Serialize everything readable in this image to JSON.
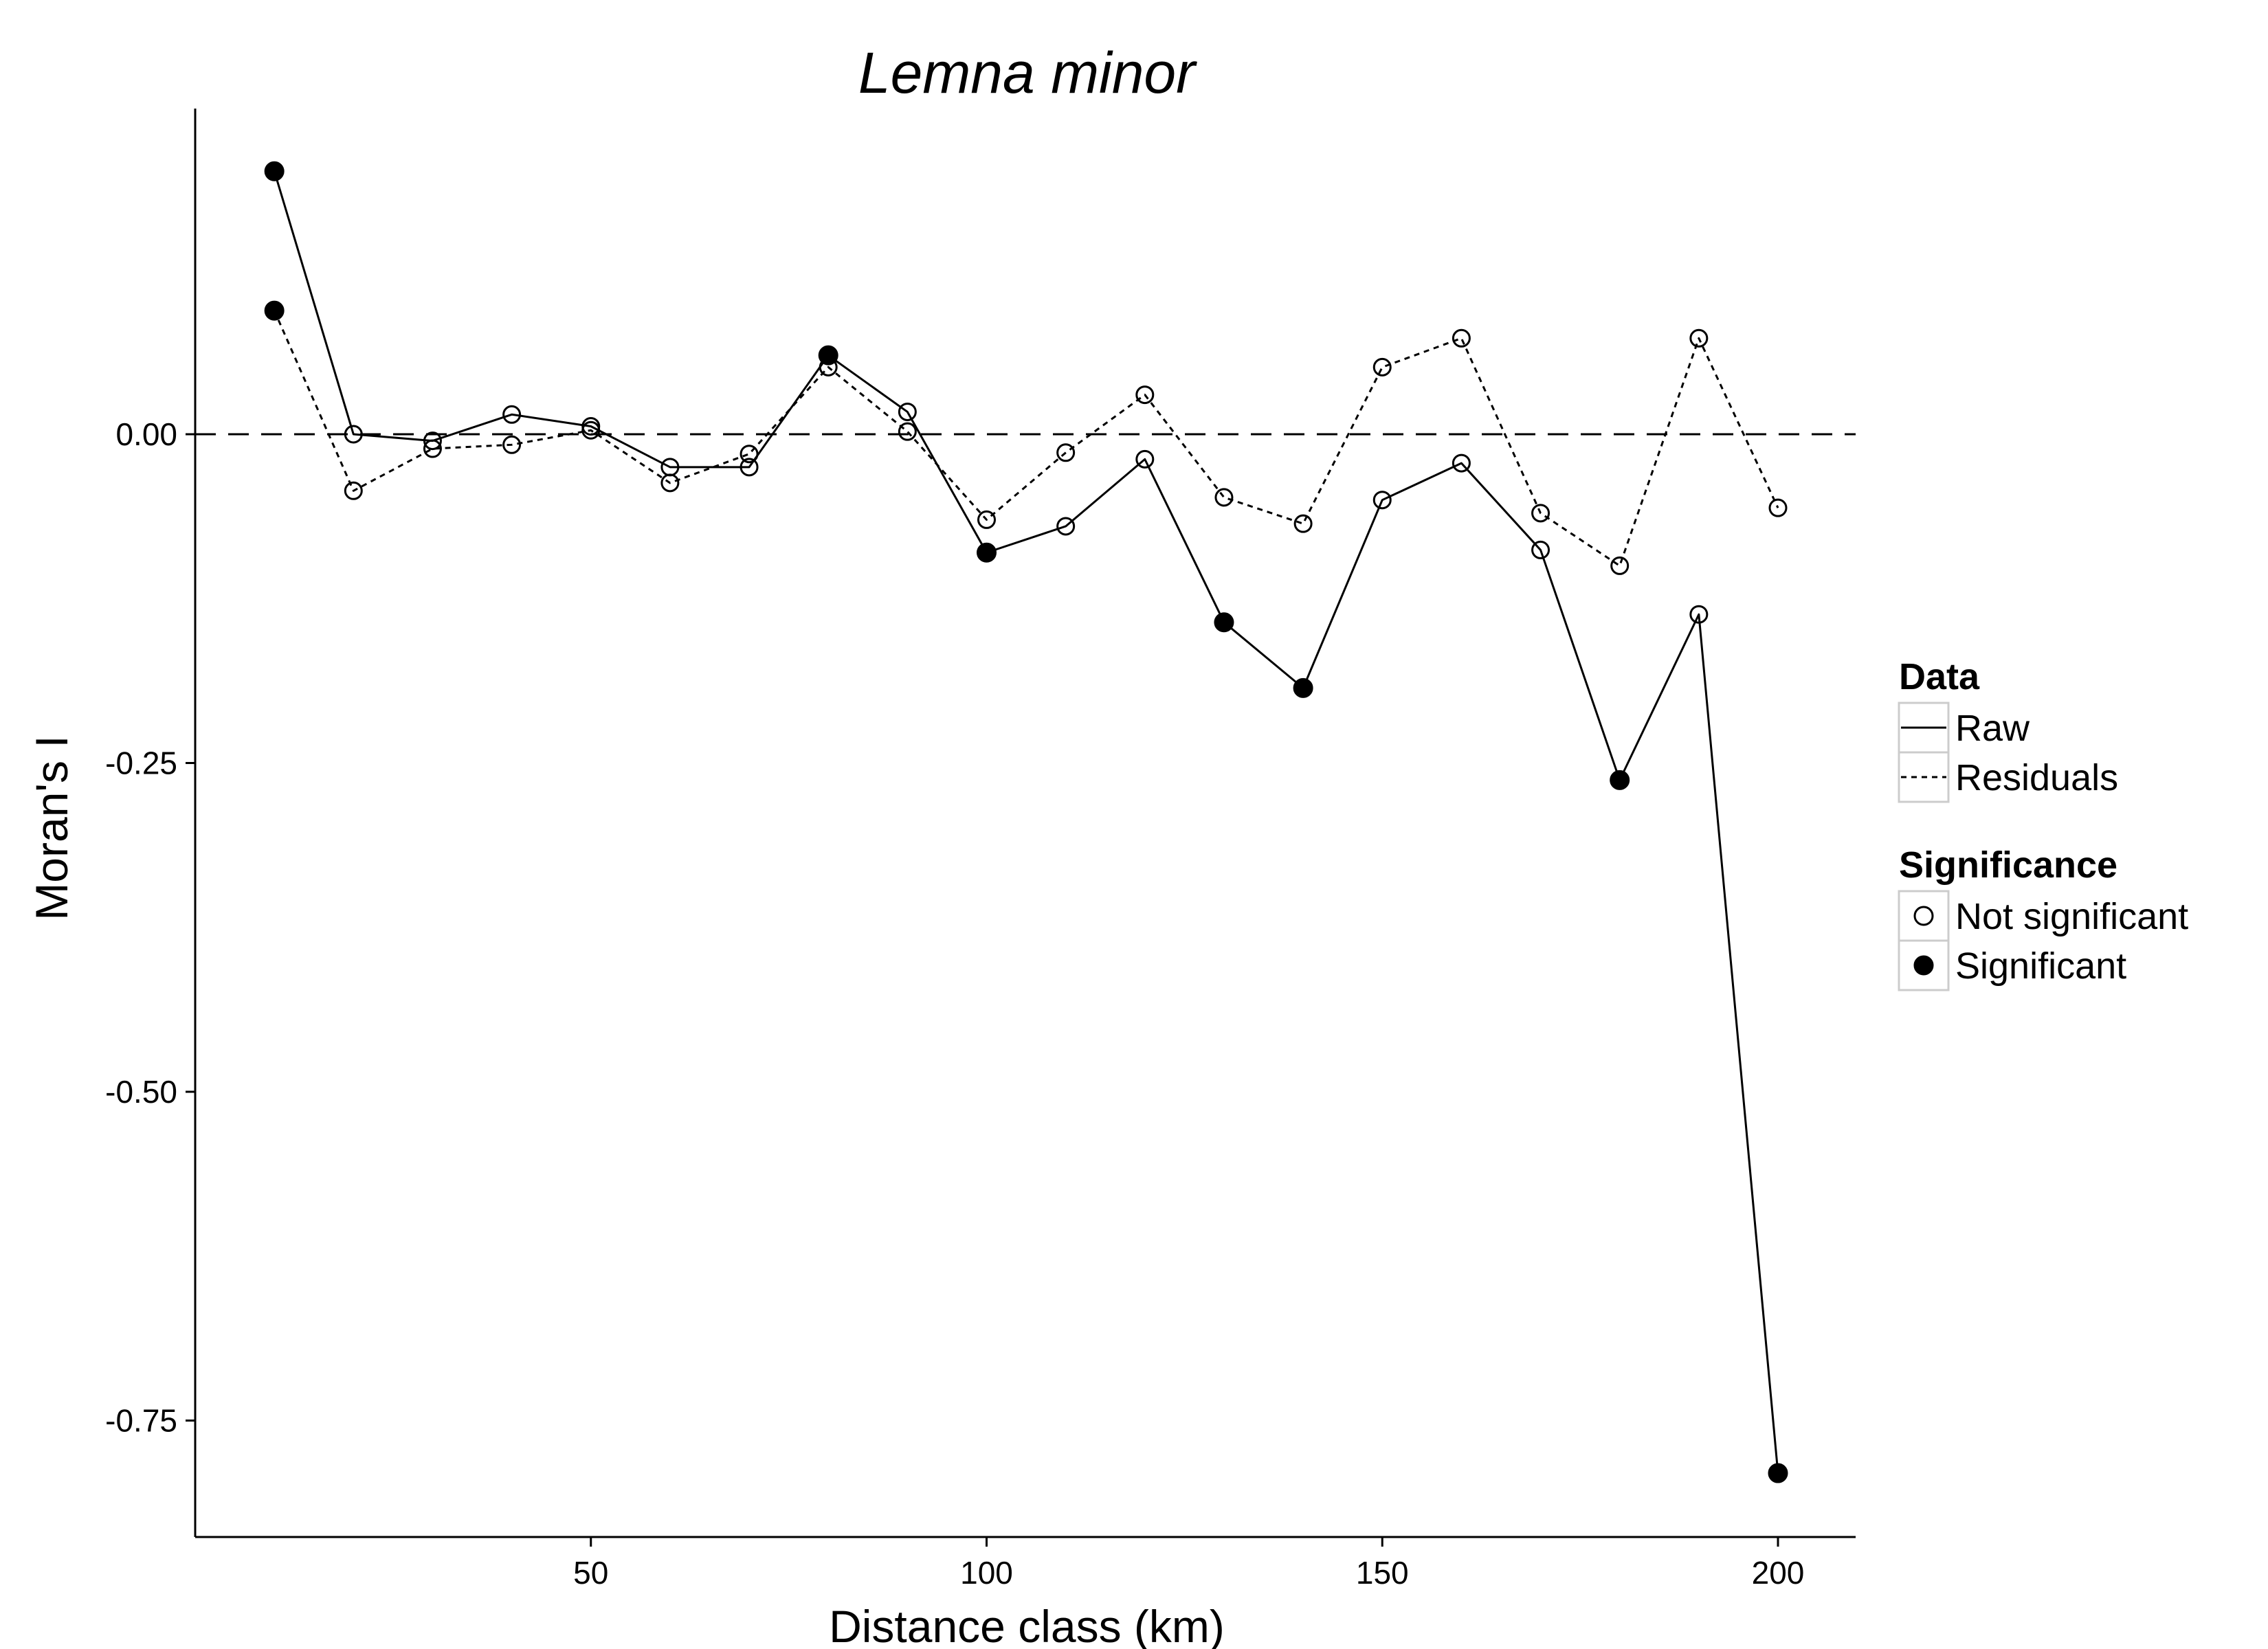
{
  "chart_data": {
    "type": "line",
    "title": "Lemna minor",
    "xlabel": "Distance class (km)",
    "ylabel": "Moran's I",
    "xlim": [
      0,
      210
    ],
    "ylim": [
      -0.83,
      0.25
    ],
    "x_ticks": [
      50,
      100,
      150,
      200
    ],
    "y_ticks": [
      0.0,
      -0.25,
      -0.5,
      -0.75
    ],
    "x_tick_labels": [
      "50",
      "100",
      "150",
      "200"
    ],
    "y_tick_labels": [
      "0.00",
      "-0.25",
      "-0.50",
      "-0.75"
    ],
    "reference_line": {
      "y": 0,
      "style": "dashed"
    },
    "grid": false,
    "legend_position": "right",
    "x": [
      10,
      20,
      30,
      40,
      50,
      60,
      70,
      80,
      90,
      100,
      110,
      120,
      130,
      140,
      150,
      160,
      170,
      180,
      190,
      200
    ],
    "series": [
      {
        "name": "Raw",
        "line_style": "solid",
        "values": [
          0.2,
          0.0,
          -0.005,
          0.015,
          0.006,
          -0.025,
          -0.025,
          0.06,
          0.017,
          -0.09,
          -0.07,
          -0.019,
          -0.143,
          -0.193,
          -0.05,
          -0.022,
          -0.088,
          -0.263,
          -0.137,
          -0.79
        ],
        "significant": [
          true,
          false,
          false,
          false,
          false,
          false,
          false,
          true,
          false,
          true,
          false,
          false,
          true,
          true,
          false,
          false,
          false,
          true,
          false,
          true
        ]
      },
      {
        "name": "Residuals",
        "line_style": "dotted",
        "values": [
          0.094,
          -0.043,
          -0.011,
          -0.008,
          0.003,
          -0.037,
          -0.015,
          0.051,
          0.002,
          -0.065,
          -0.014,
          0.03,
          -0.048,
          -0.068,
          0.051,
          0.073,
          -0.06,
          -0.1,
          0.073,
          -0.056
        ],
        "significant": [
          true,
          false,
          false,
          false,
          false,
          false,
          false,
          false,
          false,
          false,
          false,
          false,
          false,
          false,
          false,
          false,
          false,
          false,
          false,
          false
        ]
      }
    ],
    "legend": {
      "data_title": "Data",
      "data_items": [
        {
          "label": "Raw",
          "line_style": "solid"
        },
        {
          "label": "Residuals",
          "line_style": "dotted"
        }
      ],
      "significance_title": "Significance",
      "significance_items": [
        {
          "label": "Not significant",
          "marker": "open-circle"
        },
        {
          "label": "Significant",
          "marker": "filled-circle"
        }
      ]
    },
    "colors": {
      "line": "#000000",
      "background": "#ffffff",
      "legend_key_border": "#cccccc"
    }
  }
}
